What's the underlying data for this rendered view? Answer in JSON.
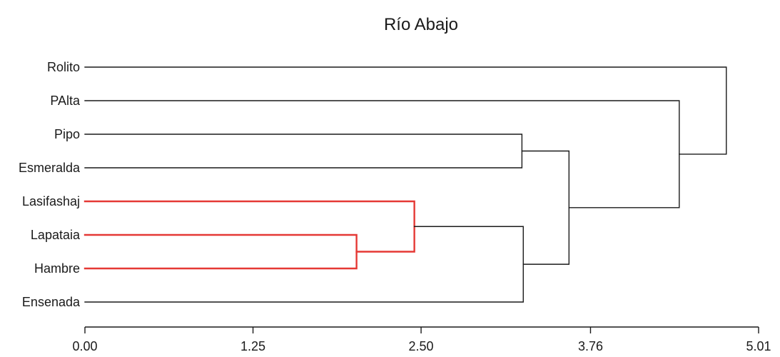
{
  "chart_data": {
    "type": "dendrogram",
    "title": "Río Abajo",
    "xlabel": "",
    "ylabel": "",
    "xlim": [
      0,
      5.01
    ],
    "x_ticks": [
      "0.00",
      "1.25",
      "2.50",
      "3.76",
      "5.01"
    ],
    "x_tick_values": [
      0,
      1.25,
      2.5,
      3.76,
      5.01
    ],
    "leaves": [
      "Rolito",
      "PAlta",
      "Pipo",
      "Esmeralda",
      "Lasifashaj",
      "Lapataia",
      "Hambre",
      "Ensenada"
    ],
    "merges": [
      {
        "left": "Lapataia",
        "right": "Hambre",
        "height": 2.02,
        "highlight": true
      },
      {
        "left": "Lasifashaj",
        "right": "Lapataia+Hambre",
        "height": 2.45,
        "highlight": true
      },
      {
        "left": "Pipo",
        "right": "Esmeralda",
        "height": 3.25,
        "highlight": false
      },
      {
        "left": "Lasifashaj+Lapataia+Hambre",
        "right": "Ensenada",
        "height": 3.26,
        "highlight": false
      },
      {
        "left": "Pipo+Esmeralda",
        "right": "Lasifashaj+Lapataia+Hambre+Ensenada",
        "height": 3.6,
        "highlight": false
      },
      {
        "left": "PAlta",
        "right": "Pipo+Esmeralda+Lasifashaj+Lapataia+Hambre+Ensenada",
        "height": 4.42,
        "highlight": false
      },
      {
        "left": "Rolito",
        "right": "PAlta+Pipo+Esmeralda+Lasifashaj+Lapataia+Hambre+Ensenada",
        "height": 4.77,
        "highlight": false
      }
    ],
    "colors": {
      "default": "#1a1a1a",
      "highlight": "#e53935"
    },
    "grid": false,
    "legend": "none"
  }
}
